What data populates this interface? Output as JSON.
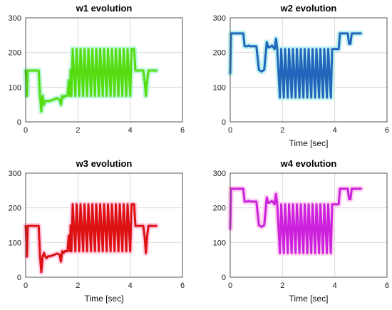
{
  "chart_data": [
    {
      "type": "line",
      "title": "w1 evolution",
      "xlabel": "",
      "ylabel": "",
      "xlim": [
        0,
        6
      ],
      "ylim": [
        0,
        300
      ],
      "xticks": [
        "0",
        "2",
        "4",
        "6"
      ],
      "yticks": [
        "0",
        "100",
        "200",
        "300"
      ],
      "grid": true,
      "series": [
        {
          "color": "#55dd11",
          "halo": "#b8f5d8",
          "x": [
            0.0,
            0.05,
            0.08,
            0.12,
            0.5,
            0.55,
            0.6,
            0.65,
            0.7,
            0.75,
            0.8,
            0.85,
            0.9,
            1.0,
            1.1,
            1.2,
            1.3,
            1.35,
            1.4,
            1.45,
            1.5,
            1.55,
            1.6,
            1.65,
            1.7,
            1.72,
            1.75,
            1.8,
            1.9,
            1.95,
            2.05,
            2.1,
            2.2,
            2.25,
            2.35,
            2.4,
            2.5,
            2.55,
            2.65,
            2.7,
            2.8,
            2.85,
            2.95,
            3.0,
            3.1,
            3.15,
            3.25,
            3.3,
            3.4,
            3.45,
            3.55,
            3.6,
            3.7,
            3.75,
            3.85,
            3.9,
            4.0,
            4.05,
            4.15,
            4.2,
            4.4,
            4.5,
            4.55,
            4.6,
            4.65,
            4.7,
            5.0
          ],
          "y": [
            148,
            75,
            148,
            148,
            148,
            75,
            30,
            75,
            50,
            60,
            60,
            60,
            60,
            62,
            65,
            68,
            65,
            50,
            75,
            70,
            75,
            75,
            75,
            120,
            75,
            150,
            75,
            210,
            75,
            210,
            75,
            210,
            75,
            210,
            75,
            210,
            75,
            210,
            75,
            210,
            75,
            210,
            75,
            210,
            75,
            210,
            75,
            210,
            75,
            210,
            75,
            210,
            75,
            210,
            75,
            210,
            75,
            210,
            210,
            148,
            148,
            148,
            120,
            75,
            120,
            148,
            148
          ]
        }
      ]
    },
    {
      "type": "line",
      "title": "w2 evolution",
      "xlabel": "Time [sec]",
      "ylabel": "",
      "xlim": [
        0,
        6
      ],
      "ylim": [
        0,
        300
      ],
      "xticks": [
        "0",
        "2",
        "4",
        "6"
      ],
      "yticks": [
        "0",
        "100",
        "200",
        "300"
      ],
      "grid": true,
      "series": [
        {
          "color": "#2266bb",
          "halo": "#b8f0f0",
          "x": [
            0.0,
            0.03,
            0.07,
            0.5,
            0.55,
            0.6,
            0.65,
            0.7,
            0.75,
            1.0,
            1.1,
            1.2,
            1.3,
            1.4,
            1.45,
            1.5,
            1.6,
            1.7,
            1.75,
            1.8,
            1.9,
            1.95,
            2.05,
            2.1,
            2.2,
            2.25,
            2.35,
            2.4,
            2.5,
            2.55,
            2.65,
            2.7,
            2.8,
            2.85,
            2.95,
            3.0,
            3.1,
            3.15,
            3.25,
            3.3,
            3.4,
            3.45,
            3.55,
            3.6,
            3.7,
            3.75,
            3.85,
            3.9,
            4.0,
            4.05,
            4.15,
            4.2,
            4.4,
            4.5,
            4.55,
            4.6,
            4.65,
            4.7,
            5.0
          ],
          "y": [
            140,
            255,
            255,
            255,
            218,
            218,
            218,
            220,
            218,
            218,
            150,
            145,
            150,
            230,
            215,
            215,
            220,
            210,
            240,
            210,
            70,
            210,
            70,
            210,
            70,
            210,
            70,
            210,
            70,
            210,
            70,
            210,
            70,
            210,
            70,
            210,
            70,
            210,
            70,
            210,
            70,
            210,
            70,
            210,
            70,
            210,
            70,
            210,
            210,
            210,
            210,
            255,
            255,
            255,
            225,
            225,
            255,
            255,
            255
          ]
        }
      ]
    },
    {
      "type": "line",
      "title": "w3 evolution",
      "xlabel": "Time [sec]",
      "ylabel": "",
      "xlim": [
        0,
        6
      ],
      "ylim": [
        0,
        300
      ],
      "xticks": [
        "0",
        "2",
        "4",
        "6"
      ],
      "yticks": [
        "0",
        "100",
        "200",
        "300"
      ],
      "grid": true,
      "series": [
        {
          "color": "#dd1111",
          "halo": "#ffc8e2",
          "x": [
            0.0,
            0.05,
            0.08,
            0.12,
            0.5,
            0.55,
            0.6,
            0.65,
            0.7,
            0.75,
            0.8,
            0.85,
            0.9,
            1.0,
            1.1,
            1.2,
            1.3,
            1.35,
            1.4,
            1.45,
            1.5,
            1.55,
            1.6,
            1.65,
            1.7,
            1.72,
            1.75,
            1.8,
            1.9,
            1.95,
            2.05,
            2.1,
            2.2,
            2.25,
            2.35,
            2.4,
            2.5,
            2.55,
            2.65,
            2.7,
            2.8,
            2.85,
            2.95,
            3.0,
            3.1,
            3.15,
            3.25,
            3.3,
            3.4,
            3.45,
            3.55,
            3.6,
            3.7,
            3.75,
            3.85,
            3.9,
            4.0,
            4.05,
            4.15,
            4.2,
            4.4,
            4.5,
            4.55,
            4.6,
            4.65,
            4.7,
            5.0
          ],
          "y": [
            148,
            60,
            148,
            148,
            148,
            60,
            15,
            60,
            70,
            60,
            55,
            60,
            60,
            62,
            65,
            68,
            65,
            45,
            75,
            70,
            75,
            75,
            75,
            120,
            75,
            150,
            75,
            210,
            75,
            210,
            75,
            210,
            75,
            210,
            75,
            210,
            75,
            210,
            75,
            210,
            75,
            210,
            75,
            210,
            75,
            210,
            75,
            210,
            75,
            210,
            75,
            210,
            75,
            210,
            75,
            210,
            75,
            210,
            210,
            148,
            148,
            148,
            120,
            70,
            120,
            148,
            148
          ]
        }
      ]
    },
    {
      "type": "line",
      "title": "w4 evolution",
      "xlabel": "Time [sec]",
      "ylabel": "",
      "xlim": [
        0,
        6
      ],
      "ylim": [
        0,
        300
      ],
      "xticks": [
        "0",
        "2",
        "4",
        "6"
      ],
      "yticks": [
        "0",
        "100",
        "200",
        "300"
      ],
      "grid": true,
      "series": [
        {
          "color": "#cc22dd",
          "halo": "#ffccf0",
          "x": [
            0.0,
            0.03,
            0.07,
            0.5,
            0.55,
            0.6,
            0.65,
            0.7,
            0.75,
            1.0,
            1.1,
            1.2,
            1.3,
            1.4,
            1.45,
            1.5,
            1.6,
            1.7,
            1.75,
            1.8,
            1.9,
            1.95,
            2.05,
            2.1,
            2.2,
            2.25,
            2.35,
            2.4,
            2.5,
            2.55,
            2.65,
            2.7,
            2.8,
            2.85,
            2.95,
            3.0,
            3.1,
            3.15,
            3.25,
            3.3,
            3.4,
            3.45,
            3.55,
            3.6,
            3.7,
            3.75,
            3.85,
            3.9,
            4.0,
            4.05,
            4.15,
            4.2,
            4.4,
            4.5,
            4.55,
            4.6,
            4.65,
            4.7,
            5.0
          ],
          "y": [
            140,
            255,
            255,
            255,
            218,
            218,
            218,
            220,
            218,
            218,
            150,
            145,
            150,
            230,
            215,
            215,
            220,
            210,
            240,
            210,
            70,
            210,
            70,
            210,
            70,
            210,
            70,
            210,
            70,
            210,
            70,
            210,
            70,
            210,
            70,
            210,
            70,
            210,
            70,
            210,
            70,
            210,
            70,
            210,
            70,
            210,
            70,
            210,
            210,
            210,
            210,
            255,
            255,
            255,
            225,
            225,
            255,
            255,
            255
          ]
        }
      ]
    }
  ]
}
